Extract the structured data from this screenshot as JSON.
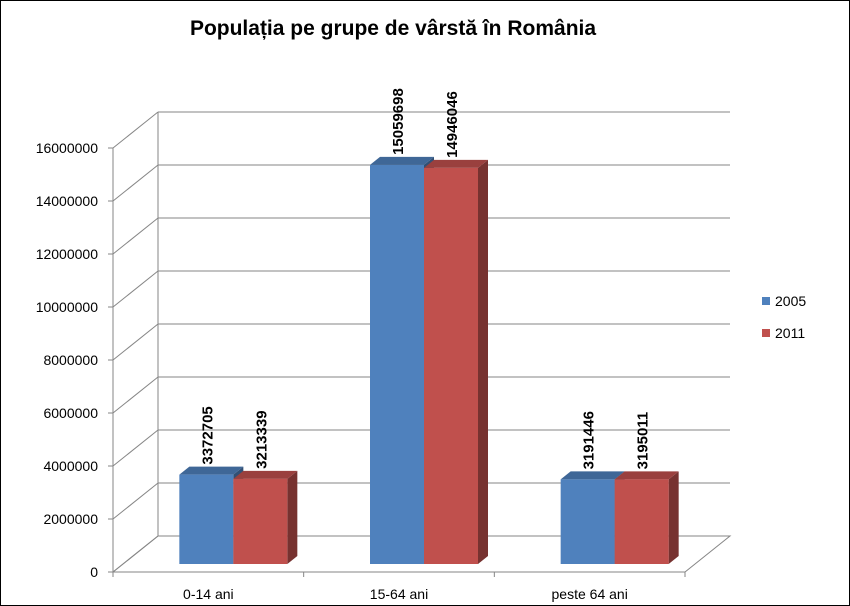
{
  "chart_data": {
    "type": "bar",
    "title": "Populația pe grupe de vârstă în România",
    "categories": [
      "0-14 ani",
      "15-64 ani",
      "peste 64 ani"
    ],
    "series": [
      {
        "name": "2005",
        "color": "#4F81BD",
        "values": [
          3372705,
          15059698,
          3191446
        ]
      },
      {
        "name": "2011",
        "color": "#C0504D",
        "values": [
          3213339,
          14946046,
          3195011
        ]
      }
    ],
    "y_ticks": [
      "0",
      "2000000",
      "4000000",
      "6000000",
      "8000000",
      "10000000",
      "12000000",
      "14000000",
      "16000000"
    ],
    "data_labels": [
      [
        "3372705",
        "15059698",
        "3191446"
      ],
      [
        "3213339",
        "14946046",
        "3195011"
      ]
    ],
    "ylim": [
      0,
      16000000
    ],
    "grid": true,
    "legend_position": "right",
    "style": "3d-clustered-column"
  }
}
